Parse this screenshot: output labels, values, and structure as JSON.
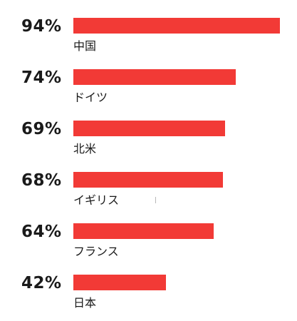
{
  "chart_data": {
    "type": "bar",
    "orientation": "horizontal",
    "categories": [
      "中国",
      "ドイツ",
      "北米",
      "イギリス",
      "フランス",
      "日本"
    ],
    "values": [
      94,
      74,
      69,
      68,
      64,
      42
    ],
    "value_labels": [
      "94%",
      "74%",
      "69%",
      "68%",
      "64%",
      "42%"
    ],
    "unit": "%",
    "xlim": [
      0,
      94
    ],
    "grid": false,
    "legend": "none",
    "bar_color": "#f23a36"
  }
}
